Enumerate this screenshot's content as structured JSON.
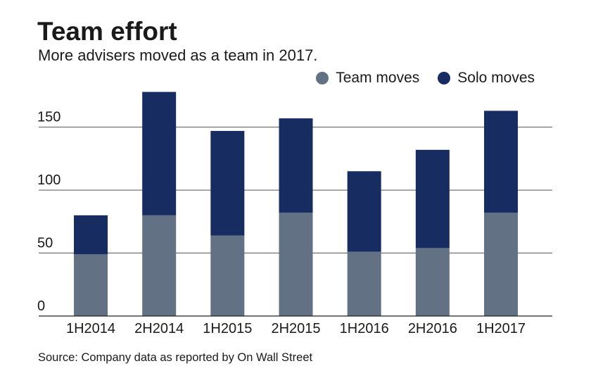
{
  "header": {
    "title": "Team effort",
    "subtitle": "More advisers moved as a team in 2017."
  },
  "legend": {
    "items": [
      {
        "label": "Team moves",
        "color": "#637184"
      },
      {
        "label": "Solo moves",
        "color": "#172d61"
      }
    ]
  },
  "chart_data": {
    "type": "bar",
    "stacked": true,
    "title": "Team effort",
    "subtitle": "More advisers moved as a team in 2017.",
    "xlabel": "",
    "ylabel": "",
    "ylim": [
      0,
      180
    ],
    "yticks": [
      0,
      50,
      100,
      150
    ],
    "grid": true,
    "legend_position": "top-right",
    "categories": [
      "1H2014",
      "2H2014",
      "1H2015",
      "2H2015",
      "1H2016",
      "2H2016",
      "1H2017"
    ],
    "series": [
      {
        "name": "Team moves",
        "color": "#637184",
        "values": [
          49,
          80,
          64,
          82,
          51,
          54,
          82
        ]
      },
      {
        "name": "Solo moves",
        "color": "#172d61",
        "values": [
          31,
          98,
          83,
          75,
          64,
          78,
          81
        ]
      }
    ]
  },
  "footer": {
    "source": "Source: Company data as reported by On Wall Street"
  }
}
